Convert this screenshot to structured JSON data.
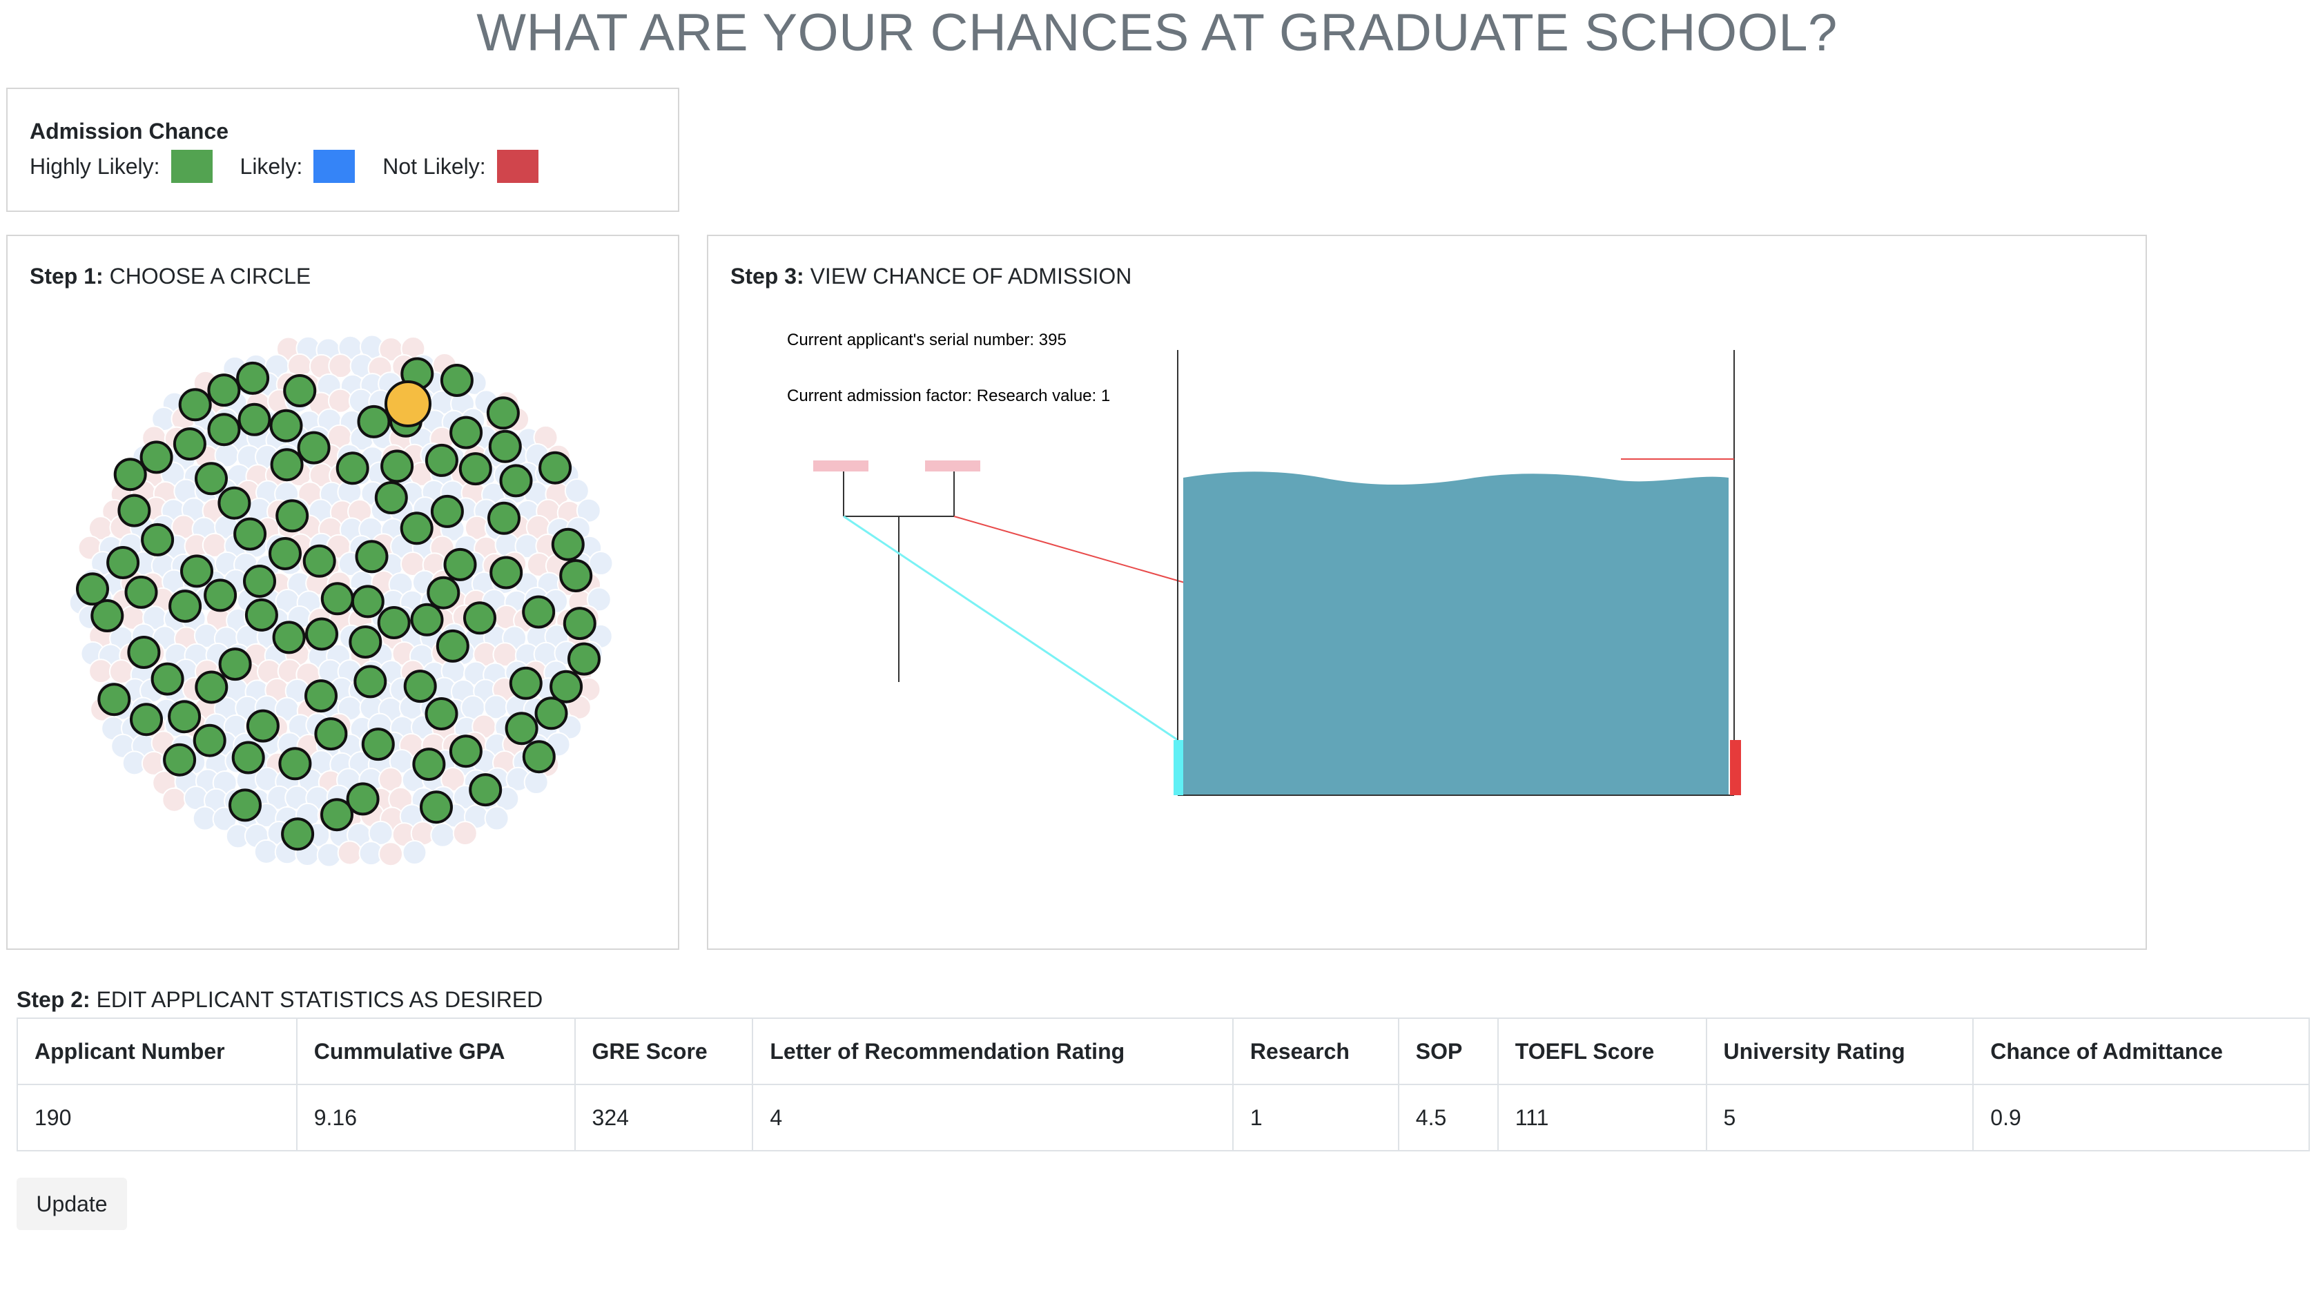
{
  "header": {
    "title": "WHAT ARE YOUR CHANCES AT GRADUATE SCHOOL?"
  },
  "legend": {
    "title": "Admission Chance",
    "items": [
      {
        "label": "Highly Likely:",
        "color": "#53a351"
      },
      {
        "label": "Likely:",
        "color": "#3584f7"
      },
      {
        "label": "Not Likely:",
        "color": "#d0454c"
      }
    ]
  },
  "step1": {
    "label": "Step 1:",
    "text": "CHOOSE A CIRCLE"
  },
  "step3": {
    "label": "Step 3:",
    "text": "VIEW CHANCE OF ADMISSION",
    "serial_text": "Current applicant's serial number: 395",
    "factor_text": "Current admission factor: Research value: 1",
    "water_color": "#62a5b8",
    "left_marker_color": "#5ff0f5",
    "right_marker_color": "#e63b3b"
  },
  "step2": {
    "label": "Step 2:",
    "text": "EDIT APPLICANT STATISTICS AS DESIRED"
  },
  "table": {
    "headers": [
      "Applicant Number",
      "Cummulative GPA",
      "GRE Score",
      "Letter of Recommendation Rating",
      "Research",
      "SOP",
      "TOEFL Score",
      "University Rating",
      "Chance of Admittance"
    ],
    "row": [
      "190",
      "9.16",
      "324",
      "4",
      "1",
      "4.5",
      "111",
      "5",
      "0.9"
    ]
  },
  "update_label": "Update",
  "colors": {
    "highlight": "#f5bd41",
    "bubble_bg_blue": "#e6eef9",
    "bubble_bg_red": "#f7e6e6"
  }
}
